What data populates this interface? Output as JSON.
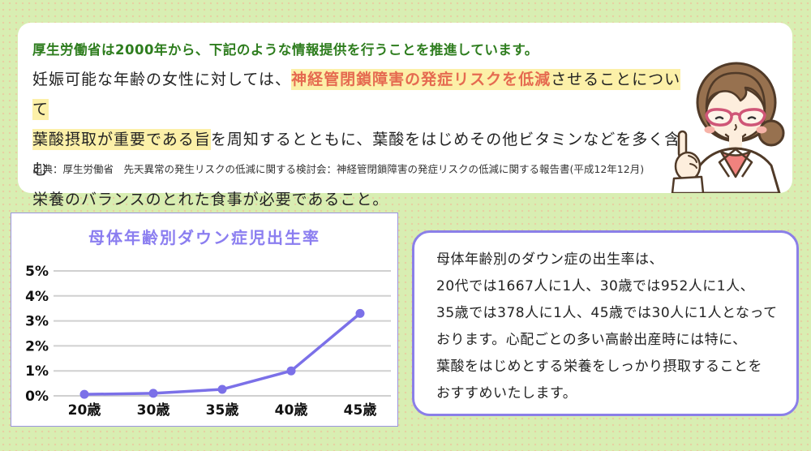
{
  "page": {
    "background_color": "#d8eeb2",
    "dot_pattern_color": "#e6cfa2"
  },
  "notice_card": {
    "heading": "厚生労働省は2000年から、下記のような情報提供を行うことを推進しています。",
    "body": {
      "line1_plain": "妊娠可能な年齢の女性に対しては、",
      "line1_highlight_red": "神経管閉鎖障害の発症リスクを低減",
      "line1_highlight_black": "させることについて",
      "line2_highlight": "葉酸摂取が重要である旨",
      "line2_plain": "を周知するとともに、葉酸をはじめその他ビタミンなどを多く含む",
      "line3_plain": "栄養のバランスのとれた食事が必要であること。"
    },
    "source": "出典：厚生労働省　先天異常の発生リスクの低減に関する検討会：神経管閉鎖障害の発症リスクの低減に関する報告書(平成12年12月)",
    "colors": {
      "heading_green": "#2e7d1e",
      "highlight_yellow": "#fcf0a8",
      "emphasis_red": "#e56a50"
    },
    "doctor_illustration": "female-doctor-with-pink-glasses-pointing-up"
  },
  "chart_data": {
    "type": "line",
    "title": "母体年齢別ダウン症児出生率",
    "categories": [
      "20歳",
      "30歳",
      "35歳",
      "40歳",
      "45歳"
    ],
    "values": [
      0.06,
      0.1,
      0.26,
      1.0,
      3.3
    ],
    "y_ticks": [
      "0%",
      "1%",
      "2%",
      "3%",
      "4%",
      "5%"
    ],
    "ylim": [
      0,
      5
    ],
    "xlabel": "",
    "ylabel": "",
    "grid": true,
    "legend": false,
    "line_color": "#7b70e8",
    "point_color": "#7b70e8",
    "grid_color": "#d0d0d0",
    "title_color": "#8b7ef0",
    "border_color": "#9a94e0"
  },
  "info_box": {
    "lines": [
      "母体年齢別のダウン症の出生率は、",
      "20代では1667人に1人、30歳では952人に1人、",
      "35歳では378人に1人、45歳では30人に1人となって",
      "おります。心配ごとの多い高齢出産時には特に、",
      "葉酸をはじめとする栄養をしっかり摂取することを",
      "おすすめいたします。"
    ],
    "border_color": "#8b7fe8"
  }
}
